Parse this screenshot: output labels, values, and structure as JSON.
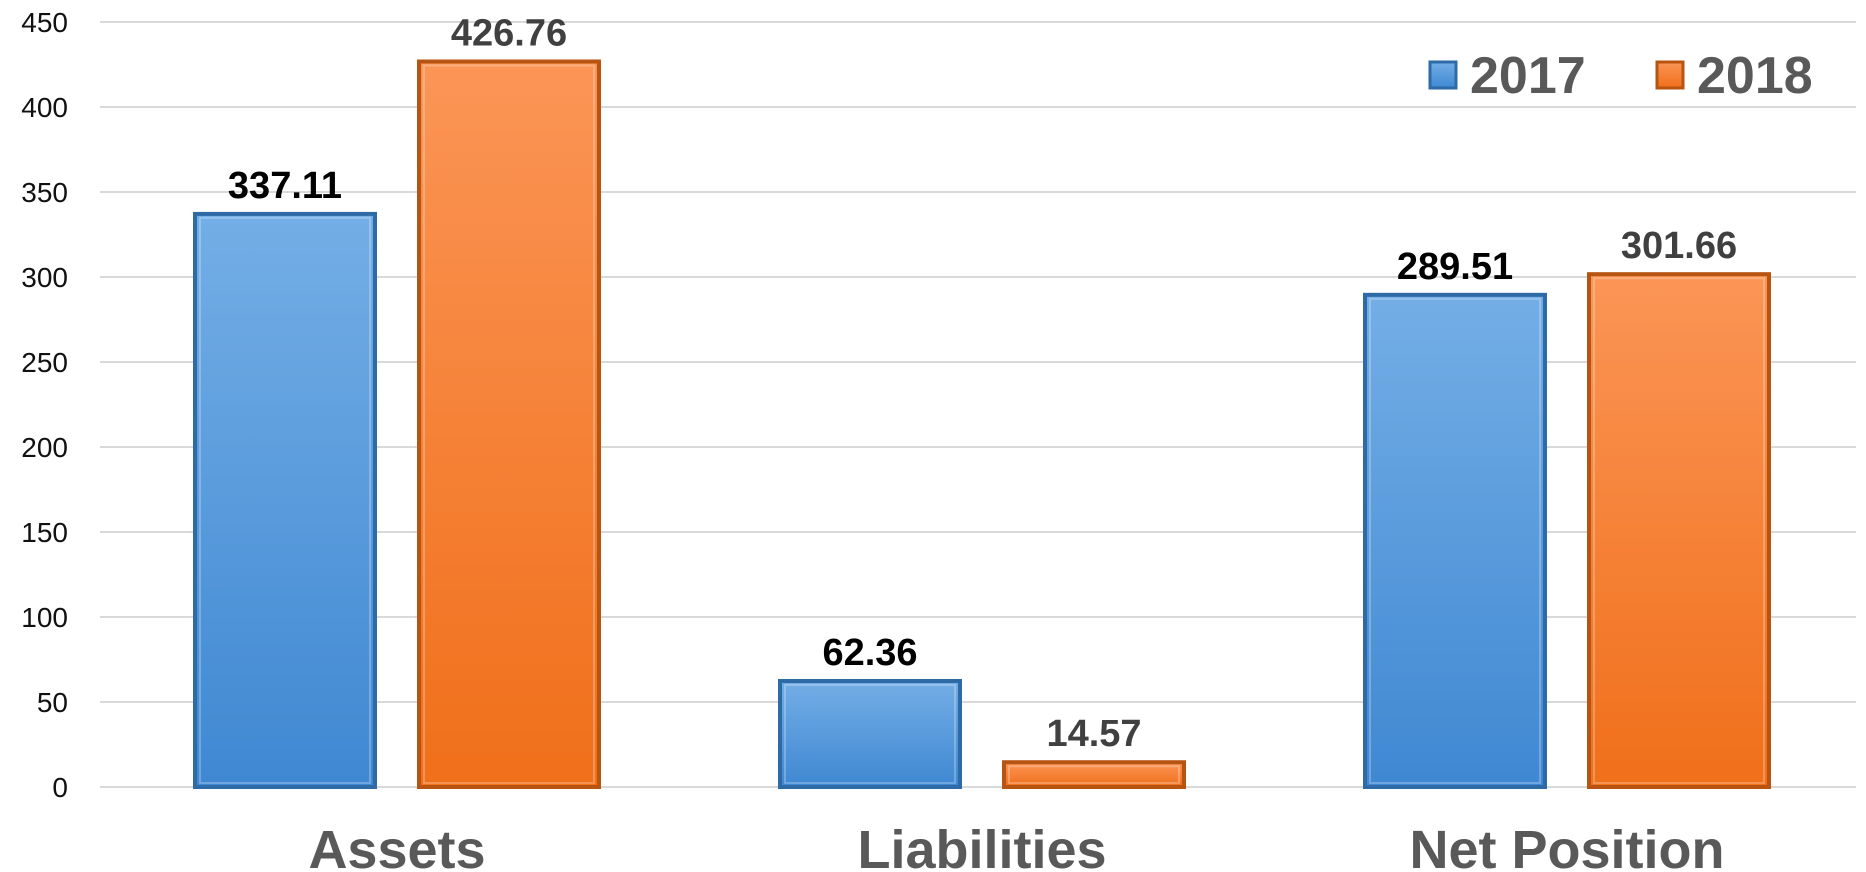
{
  "chart_data": {
    "type": "bar",
    "categories": [
      "Assets",
      "Liabilities",
      "Net Position"
    ],
    "series": [
      {
        "name": "2017",
        "values": [
          337.11,
          62.36,
          289.51
        ],
        "label_texts": [
          "337.11",
          "62.36",
          "289.51"
        ]
      },
      {
        "name": "2018",
        "values": [
          426.76,
          14.57,
          301.66
        ],
        "label_texts": [
          "426.76",
          "14.57",
          "301.66"
        ]
      }
    ],
    "ylim": [
      0,
      450
    ],
    "y_ticks": [
      "0",
      "50",
      "100",
      "150",
      "200",
      "250",
      "300",
      "350",
      "400",
      "450"
    ],
    "grid": true,
    "legend_position": "top-right",
    "title": "",
    "xlabel": "",
    "ylabel": "",
    "colors": {
      "2017": "#5b9bd5",
      "2018": "#f47f2a",
      "label_2017": "#000000",
      "label_2018": "#404040"
    }
  }
}
